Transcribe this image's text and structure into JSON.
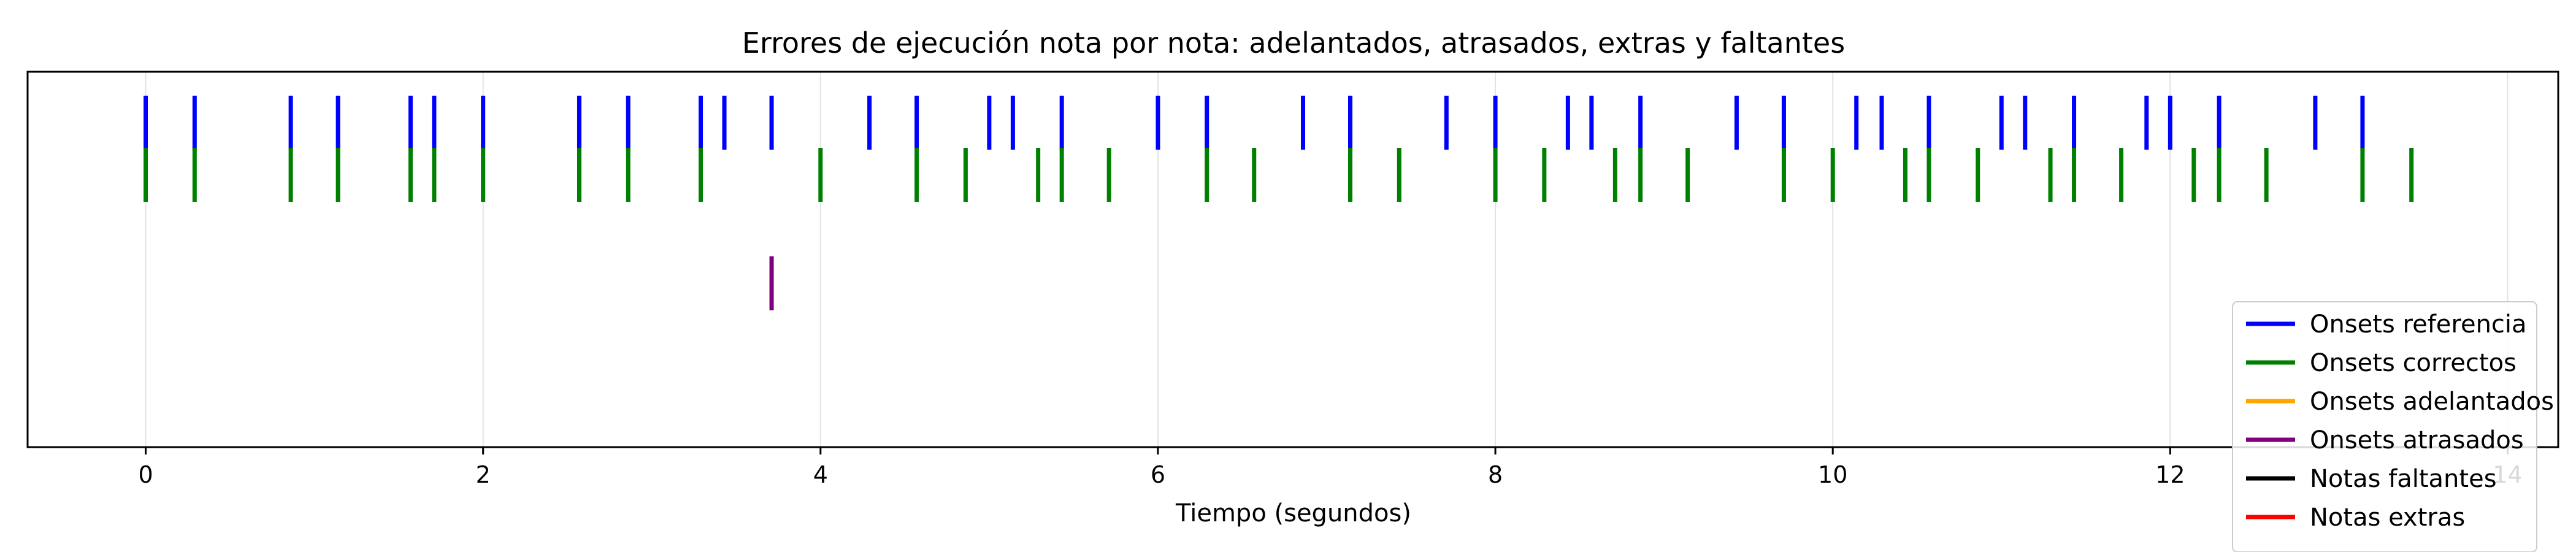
{
  "chart_data": {
    "type": "eventplot",
    "title": "Errores de ejecución nota por nota: adelantados, atrasados, extras y faltantes",
    "xlabel": "Tiempo (segundos)",
    "ylabel": "",
    "xlim": [
      -0.7,
      14.3
    ],
    "xticks": [
      0,
      2,
      4,
      6,
      8,
      10,
      12,
      14
    ],
    "xtick_labels": [
      "0",
      "2",
      "4",
      "6",
      "8",
      "10",
      "12",
      "14"
    ],
    "grid": "x",
    "legend_position": "bottom-right",
    "series": [
      {
        "name": "Onsets referencia",
        "color": "#0000ff",
        "row": 4,
        "x": [
          0.0,
          0.29,
          0.86,
          1.14,
          1.57,
          1.71,
          2.0,
          2.57,
          2.86,
          3.29,
          3.43,
          3.71,
          4.29,
          4.57,
          5.0,
          5.14,
          5.43,
          6.0,
          6.29,
          6.86,
          7.14,
          7.71,
          8.0,
          8.43,
          8.57,
          8.86,
          9.43,
          9.71,
          10.14,
          10.29,
          10.57,
          11.0,
          11.14,
          11.43,
          11.86,
          12.0,
          12.29,
          12.86,
          13.14
        ]
      },
      {
        "name": "Onsets correctos",
        "color": "#008000",
        "row": 3,
        "x": [
          0.0,
          0.29,
          0.86,
          1.14,
          1.57,
          1.71,
          2.0,
          2.57,
          2.86,
          3.29,
          4.0,
          4.57,
          4.86,
          5.29,
          5.43,
          5.71,
          6.29,
          6.57,
          7.14,
          7.43,
          8.0,
          8.29,
          8.71,
          8.86,
          9.14,
          9.71,
          10.0,
          10.43,
          10.57,
          10.86,
          11.29,
          11.43,
          11.71,
          12.14,
          12.29,
          12.57,
          13.14,
          13.43
        ]
      },
      {
        "name": "Onsets adelantados",
        "color": "#ffa500",
        "row": 2,
        "x": []
      },
      {
        "name": "Onsets atrasados",
        "color": "#800080",
        "row": 1,
        "x": [
          3.71
        ]
      },
      {
        "name": "Notas faltantes",
        "color": "#000000",
        "row": 0,
        "x": []
      },
      {
        "name": "Notas extras",
        "color": "#ff0000",
        "row": -1,
        "x": []
      }
    ]
  }
}
